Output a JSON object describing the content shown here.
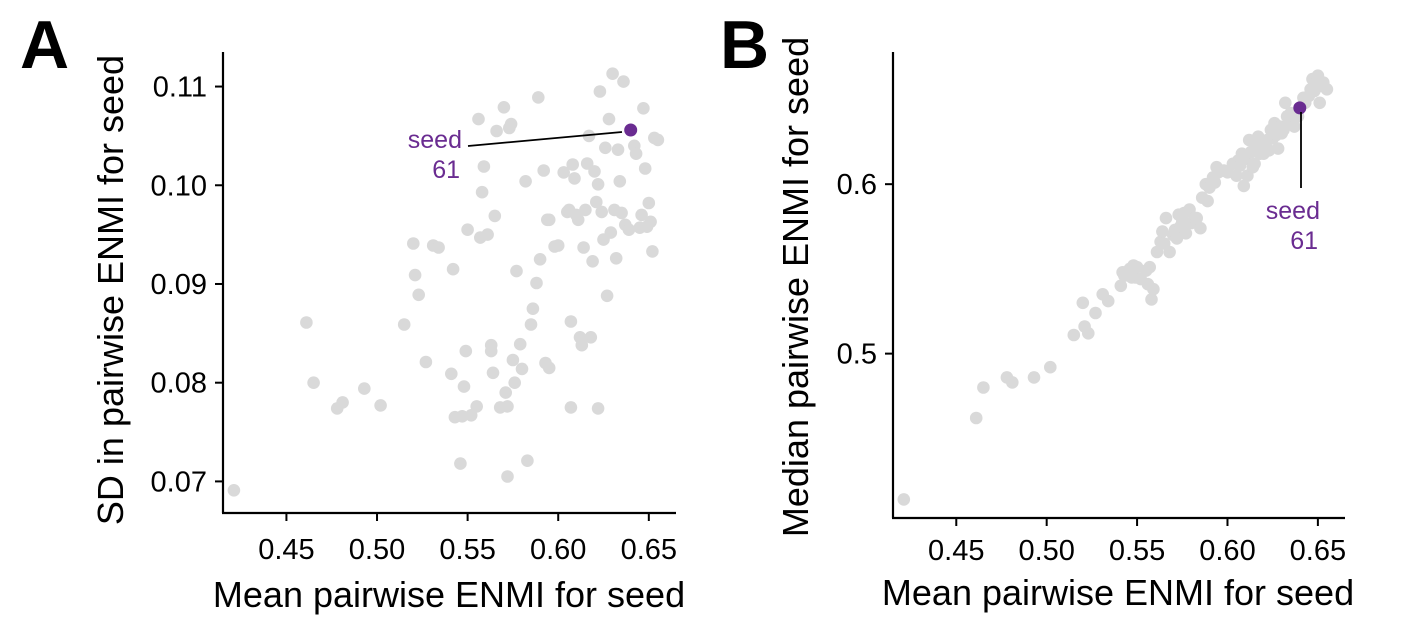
{
  "colors": {
    "point": "#d9d9d9",
    "highlight": "#6a2c91",
    "axis": "#000000"
  },
  "chart_data": [
    {
      "type": "scatter",
      "panel_label": "A",
      "xlabel": "Mean pairwise ENMI for seed",
      "ylabel": "SD in pairwise ENMI for seed",
      "xlim": [
        0.415,
        0.665
      ],
      "ylim": [
        0.0668,
        0.1135
      ],
      "xticks": [
        0.45,
        0.5,
        0.55,
        0.6,
        0.65
      ],
      "xtick_labels": [
        "0.45",
        "0.50",
        "0.55",
        "0.60",
        "0.65"
      ],
      "yticks": [
        0.07,
        0.08,
        0.09,
        0.1,
        0.11
      ],
      "ytick_labels": [
        "0.07",
        "0.08",
        "0.09",
        "0.10",
        "0.11"
      ],
      "grid": false,
      "highlight": {
        "x": 0.64,
        "y": 0.1056,
        "label_line1": "seed",
        "label_line2": "61"
      },
      "points": [
        [
          0.421,
          0.0691
        ],
        [
          0.461,
          0.0861
        ],
        [
          0.465,
          0.08
        ],
        [
          0.478,
          0.0774
        ],
        [
          0.481,
          0.078
        ],
        [
          0.493,
          0.0794
        ],
        [
          0.502,
          0.0777
        ],
        [
          0.515,
          0.0859
        ],
        [
          0.52,
          0.0941
        ],
        [
          0.521,
          0.0909
        ],
        [
          0.523,
          0.0889
        ],
        [
          0.527,
          0.0821
        ],
        [
          0.531,
          0.0939
        ],
        [
          0.534,
          0.0937
        ],
        [
          0.541,
          0.0809
        ],
        [
          0.542,
          0.0915
        ],
        [
          0.543,
          0.0765
        ],
        [
          0.546,
          0.0718
        ],
        [
          0.547,
          0.0766
        ],
        [
          0.548,
          0.0796
        ],
        [
          0.549,
          0.0832
        ],
        [
          0.55,
          0.0955
        ],
        [
          0.552,
          0.0767
        ],
        [
          0.555,
          0.0776
        ],
        [
          0.556,
          0.1067
        ],
        [
          0.557,
          0.0947
        ],
        [
          0.558,
          0.0993
        ],
        [
          0.559,
          0.1019
        ],
        [
          0.561,
          0.095
        ],
        [
          0.563,
          0.0838
        ],
        [
          0.564,
          0.081
        ],
        [
          0.565,
          0.0969
        ],
        [
          0.566,
          0.1055
        ],
        [
          0.568,
          0.0775
        ],
        [
          0.57,
          0.1079
        ],
        [
          0.571,
          0.079
        ],
        [
          0.572,
          0.0705
        ],
        [
          0.573,
          0.1058
        ],
        [
          0.574,
          0.1062
        ],
        [
          0.575,
          0.0823
        ],
        [
          0.576,
          0.08
        ],
        [
          0.577,
          0.0913
        ],
        [
          0.579,
          0.0839
        ],
        [
          0.58,
          0.0814
        ],
        [
          0.582,
          0.1004
        ],
        [
          0.583,
          0.0721
        ],
        [
          0.585,
          0.0859
        ],
        [
          0.586,
          0.0875
        ],
        [
          0.588,
          0.0901
        ],
        [
          0.589,
          0.1089
        ],
        [
          0.59,
          0.0925
        ],
        [
          0.592,
          0.1015
        ],
        [
          0.593,
          0.082
        ],
        [
          0.594,
          0.0965
        ],
        [
          0.595,
          0.0965
        ],
        [
          0.598,
          0.0938
        ],
        [
          0.6,
          0.0939
        ],
        [
          0.603,
          0.1013
        ],
        [
          0.605,
          0.0973
        ],
        [
          0.606,
          0.0975
        ],
        [
          0.607,
          0.0862
        ],
        [
          0.608,
          0.1021
        ],
        [
          0.609,
          0.1007
        ],
        [
          0.61,
          0.097
        ],
        [
          0.611,
          0.0965
        ],
        [
          0.612,
          0.0846
        ],
        [
          0.613,
          0.0838
        ],
        [
          0.614,
          0.0937
        ],
        [
          0.615,
          0.0975
        ],
        [
          0.616,
          0.1022
        ],
        [
          0.617,
          0.105
        ],
        [
          0.618,
          0.0846
        ],
        [
          0.619,
          0.0923
        ],
        [
          0.62,
          0.1014
        ],
        [
          0.621,
          0.0983
        ],
        [
          0.622,
          0.1001
        ],
        [
          0.623,
          0.1095
        ],
        [
          0.624,
          0.0973
        ],
        [
          0.625,
          0.0945
        ],
        [
          0.626,
          0.1038
        ],
        [
          0.627,
          0.0888
        ],
        [
          0.628,
          0.1067
        ],
        [
          0.629,
          0.0952
        ],
        [
          0.63,
          0.1113
        ],
        [
          0.631,
          0.0975
        ],
        [
          0.632,
          0.0926
        ],
        [
          0.633,
          0.1036
        ],
        [
          0.634,
          0.1004
        ],
        [
          0.635,
          0.0972
        ],
        [
          0.636,
          0.1105
        ],
        [
          0.637,
          0.096
        ],
        [
          0.639,
          0.0955
        ],
        [
          0.642,
          0.104
        ],
        [
          0.643,
          0.1032
        ],
        [
          0.645,
          0.0957
        ],
        [
          0.646,
          0.097
        ],
        [
          0.647,
          0.1078
        ],
        [
          0.648,
          0.1017
        ],
        [
          0.649,
          0.0958
        ],
        [
          0.65,
          0.0982
        ],
        [
          0.651,
          0.0963
        ],
        [
          0.652,
          0.0933
        ],
        [
          0.653,
          0.1048
        ],
        [
          0.655,
          0.1046
        ],
        [
          0.622,
          0.0774
        ],
        [
          0.607,
          0.0775
        ],
        [
          0.595,
          0.0815
        ],
        [
          0.563,
          0.0832
        ],
        [
          0.572,
          0.0776
        ]
      ]
    },
    {
      "type": "scatter",
      "panel_label": "B",
      "xlabel": "Mean pairwise ENMI for seed",
      "ylabel": "Median pairwise ENMI for seed",
      "xlim": [
        0.415,
        0.665
      ],
      "ylim": [
        0.403,
        0.678
      ],
      "xticks": [
        0.45,
        0.5,
        0.55,
        0.6,
        0.65
      ],
      "xtick_labels": [
        "0.45",
        "0.50",
        "0.55",
        "0.60",
        "0.65"
      ],
      "yticks": [
        0.5,
        0.6
      ],
      "ytick_labels": [
        "0.5",
        "0.6"
      ],
      "grid": false,
      "highlight": {
        "x": 0.64,
        "y": 0.645,
        "label_line1": "seed",
        "label_line2": "61"
      },
      "points": [
        [
          0.421,
          0.414
        ],
        [
          0.461,
          0.462
        ],
        [
          0.465,
          0.48
        ],
        [
          0.478,
          0.486
        ],
        [
          0.481,
          0.483
        ],
        [
          0.493,
          0.486
        ],
        [
          0.502,
          0.492
        ],
        [
          0.515,
          0.511
        ],
        [
          0.52,
          0.53
        ],
        [
          0.521,
          0.516
        ],
        [
          0.523,
          0.512
        ],
        [
          0.527,
          0.524
        ],
        [
          0.531,
          0.535
        ],
        [
          0.534,
          0.531
        ],
        [
          0.541,
          0.54
        ],
        [
          0.542,
          0.548
        ],
        [
          0.543,
          0.546
        ],
        [
          0.546,
          0.55
        ],
        [
          0.547,
          0.545
        ],
        [
          0.548,
          0.552
        ],
        [
          0.549,
          0.545
        ],
        [
          0.55,
          0.551
        ],
        [
          0.552,
          0.544
        ],
        [
          0.555,
          0.549
        ],
        [
          0.556,
          0.541
        ],
        [
          0.557,
          0.551
        ],
        [
          0.558,
          0.532
        ],
        [
          0.559,
          0.538
        ],
        [
          0.561,
          0.56
        ],
        [
          0.563,
          0.566
        ],
        [
          0.564,
          0.572
        ],
        [
          0.565,
          0.565
        ],
        [
          0.566,
          0.58
        ],
        [
          0.568,
          0.56
        ],
        [
          0.57,
          0.57
        ],
        [
          0.571,
          0.573
        ],
        [
          0.572,
          0.568
        ],
        [
          0.573,
          0.582
        ],
        [
          0.574,
          0.575
        ],
        [
          0.575,
          0.578
        ],
        [
          0.576,
          0.583
        ],
        [
          0.577,
          0.571
        ],
        [
          0.579,
          0.585
        ],
        [
          0.58,
          0.577
        ],
        [
          0.582,
          0.58
        ],
        [
          0.583,
          0.58
        ],
        [
          0.585,
          0.574
        ],
        [
          0.586,
          0.592
        ],
        [
          0.588,
          0.6
        ],
        [
          0.589,
          0.59
        ],
        [
          0.59,
          0.598
        ],
        [
          0.592,
          0.604
        ],
        [
          0.593,
          0.601
        ],
        [
          0.594,
          0.61
        ],
        [
          0.595,
          0.607
        ],
        [
          0.598,
          0.608
        ],
        [
          0.6,
          0.607
        ],
        [
          0.603,
          0.612
        ],
        [
          0.605,
          0.605
        ],
        [
          0.606,
          0.614
        ],
        [
          0.607,
          0.611
        ],
        [
          0.608,
          0.618
        ],
        [
          0.609,
          0.599
        ],
        [
          0.61,
          0.615
        ],
        [
          0.611,
          0.605
        ],
        [
          0.612,
          0.626
        ],
        [
          0.613,
          0.619
        ],
        [
          0.614,
          0.61
        ],
        [
          0.615,
          0.612
        ],
        [
          0.616,
          0.622
        ],
        [
          0.617,
          0.628
        ],
        [
          0.618,
          0.618
        ],
        [
          0.619,
          0.624
        ],
        [
          0.62,
          0.618
        ],
        [
          0.621,
          0.622
        ],
        [
          0.622,
          0.626
        ],
        [
          0.623,
          0.62
        ],
        [
          0.624,
          0.632
        ],
        [
          0.625,
          0.627
        ],
        [
          0.626,
          0.636
        ],
        [
          0.627,
          0.629
        ],
        [
          0.628,
          0.621
        ],
        [
          0.629,
          0.634
        ],
        [
          0.63,
          0.63
        ],
        [
          0.631,
          0.632
        ],
        [
          0.632,
          0.648
        ],
        [
          0.633,
          0.64
        ],
        [
          0.634,
          0.636
        ],
        [
          0.635,
          0.642
        ],
        [
          0.636,
          0.638
        ],
        [
          0.637,
          0.634
        ],
        [
          0.639,
          0.64
        ],
        [
          0.642,
          0.651
        ],
        [
          0.643,
          0.648
        ],
        [
          0.645,
          0.652
        ],
        [
          0.646,
          0.656
        ],
        [
          0.647,
          0.662
        ],
        [
          0.648,
          0.655
        ],
        [
          0.649,
          0.66
        ],
        [
          0.65,
          0.664
        ],
        [
          0.651,
          0.648
        ],
        [
          0.652,
          0.658
        ],
        [
          0.653,
          0.66
        ],
        [
          0.655,
          0.656
        ],
        [
          0.625,
          0.63
        ]
      ]
    }
  ]
}
